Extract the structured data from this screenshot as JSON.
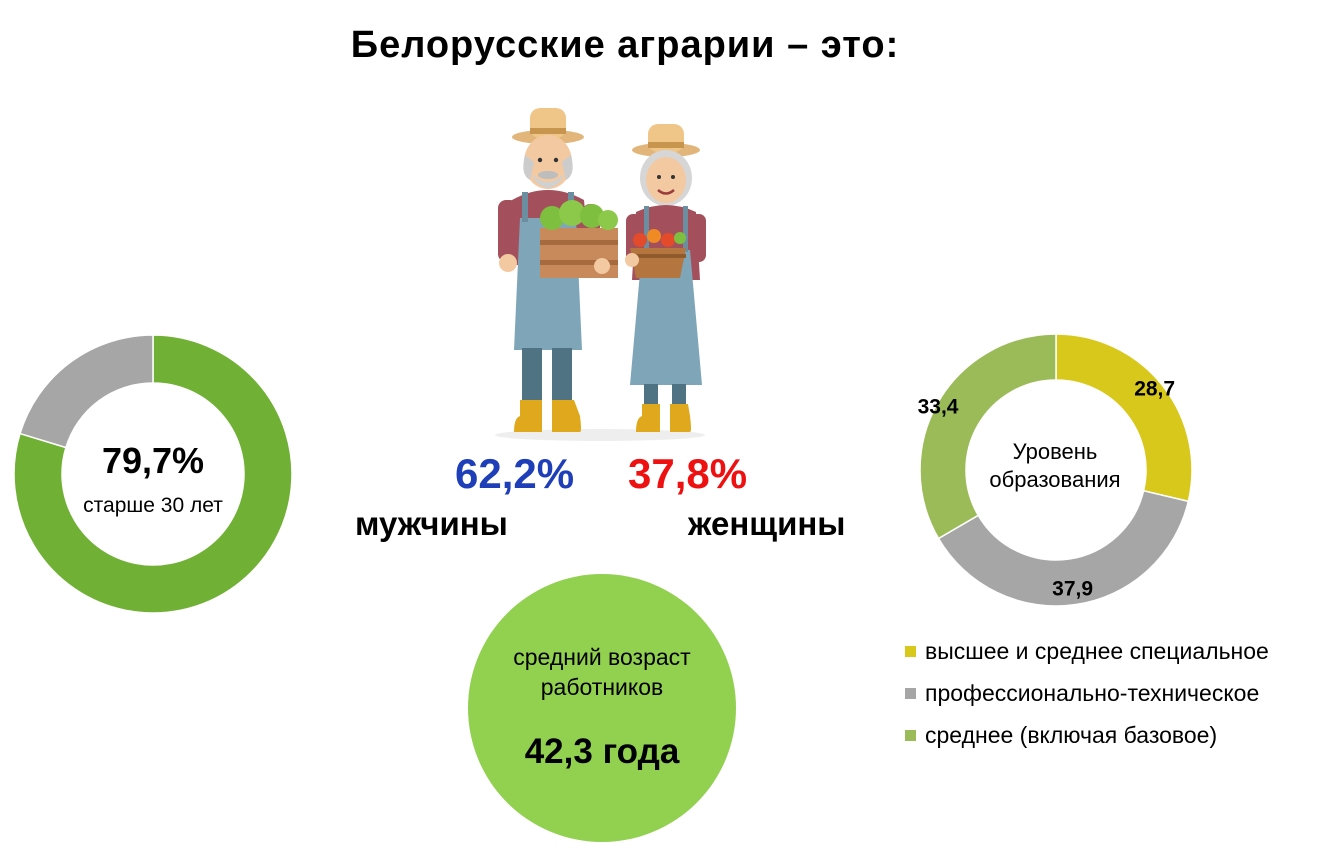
{
  "title": "Белорусские аграрии – это:",
  "gender": {
    "men_pct": "62,2%",
    "men_label": "мужчины",
    "women_pct": "37,8%",
    "women_label": "женщины",
    "colors": {
      "men": "#1f3fb8",
      "women": "#ee1111"
    }
  },
  "age_donut": {
    "value_text": "79,7%",
    "caption": "старше 30 лет"
  },
  "average_age": {
    "caption": "средний возраст работников",
    "value": "42,3 года",
    "color": "#92d050"
  },
  "education": {
    "center_label": "Уровень образования",
    "legend": [
      {
        "label": "высшее и среднее специальное",
        "color": "#d9c81c"
      },
      {
        "label": "профессионально-техническое",
        "color": "#a6a6a6"
      },
      {
        "label": "среднее (включая базовое)",
        "color": "#9bbb59"
      }
    ]
  },
  "chart_data": [
    {
      "type": "pie",
      "variant": "donut",
      "labels": [
        "старше 30 лет",
        ""
      ],
      "values": [
        79.7,
        20.3
      ],
      "colors": [
        "#70b135",
        "#a6a6a6"
      ],
      "center_text": [
        "79,7%",
        "старше 30 лет"
      ]
    },
    {
      "type": "pie",
      "variant": "donut",
      "title": "Уровень образования",
      "labels": [
        "высшее и среднее специальное",
        "профессионально-техническое",
        "среднее (включая базовое)"
      ],
      "values": [
        28.7,
        37.9,
        33.4
      ],
      "data_labels": [
        "28,7",
        "37,9",
        "33,4"
      ],
      "colors": [
        "#d9c81c",
        "#a6a6a6",
        "#9bbb59"
      ],
      "legend": "bottom"
    }
  ]
}
